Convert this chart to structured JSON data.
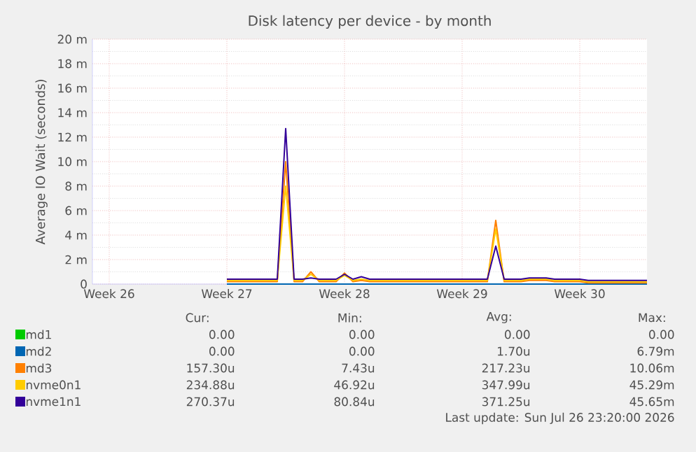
{
  "chart_data": {
    "type": "line",
    "title": "Disk latency per device - by month",
    "ylabel": "Average IO Wait (seconds)",
    "categories": [
      null,
      null,
      "Week 26",
      null,
      null,
      null,
      null,
      null,
      null,
      null,
      null,
      null,
      null,
      null,
      null,
      null,
      "Week 27",
      null,
      null,
      null,
      null,
      null,
      null,
      null,
      null,
      null,
      null,
      null,
      null,
      null,
      "Week 28",
      null,
      null,
      null,
      null,
      null,
      null,
      null,
      null,
      null,
      null,
      null,
      null,
      null,
      "Week 29",
      null,
      null,
      null,
      null,
      null,
      null,
      null,
      null,
      null,
      null,
      null,
      null,
      null,
      "Week 30",
      null,
      null,
      null,
      null,
      null,
      null,
      null,
      null
    ],
    "series": [
      {
        "name": "md1",
        "color": "#00cc00",
        "values": [
          null,
          null,
          null,
          null,
          null,
          null,
          null,
          null,
          null,
          null,
          null,
          null,
          null,
          null,
          null,
          null,
          null,
          null,
          null,
          null,
          null,
          null,
          null,
          null,
          null,
          null,
          null,
          null,
          null,
          null,
          null,
          null,
          null,
          null,
          null,
          null,
          null,
          null,
          null,
          null,
          null,
          null,
          null,
          null,
          null,
          null,
          null,
          null,
          null,
          null,
          null,
          null,
          null,
          null,
          null,
          null,
          null,
          null,
          null,
          null,
          null,
          null,
          null,
          null,
          null,
          null,
          null
        ]
      },
      {
        "name": "md2",
        "color": "#0066b3",
        "values": [
          null,
          null,
          null,
          null,
          null,
          null,
          null,
          null,
          null,
          null,
          null,
          null,
          null,
          null,
          null,
          null,
          0,
          0,
          0,
          0,
          0,
          0,
          0,
          0,
          0,
          0,
          0,
          0,
          0,
          0,
          0,
          0,
          0,
          0,
          0,
          0,
          0,
          0,
          0,
          0,
          0,
          0,
          0,
          0,
          0,
          0,
          0,
          0,
          0,
          0,
          0,
          0,
          0,
          0,
          0,
          0,
          0,
          0,
          0,
          0,
          0,
          0,
          0,
          0,
          0,
          0,
          0
        ]
      },
      {
        "name": "md3",
        "color": "#ff8000",
        "values": [
          null,
          null,
          null,
          null,
          null,
          null,
          null,
          null,
          null,
          null,
          null,
          null,
          null,
          null,
          null,
          null,
          0.2,
          0.2,
          0.2,
          0.2,
          0.2,
          0.2,
          0.2,
          10.0,
          0.2,
          0.2,
          1.0,
          0.2,
          0.2,
          0.2,
          0.9,
          0.2,
          0.3,
          0.2,
          0.2,
          0.2,
          0.2,
          0.2,
          0.2,
          0.2,
          0.2,
          0.2,
          0.2,
          0.2,
          0.2,
          0.2,
          0.2,
          0.2,
          5.2,
          0.2,
          0.2,
          0.2,
          0.3,
          0.3,
          0.3,
          0.2,
          0.2,
          0.2,
          0.2,
          0.1,
          0.1,
          0.1,
          0.1,
          0.1,
          0.1,
          0.1,
          0.1
        ]
      },
      {
        "name": "nvme0n1",
        "color": "#ffcc00",
        "values": [
          null,
          null,
          null,
          null,
          null,
          null,
          null,
          null,
          null,
          null,
          null,
          null,
          null,
          null,
          null,
          null,
          0.3,
          0.3,
          0.3,
          0.3,
          0.3,
          0.3,
          0.3,
          8.0,
          0.3,
          0.3,
          0.8,
          0.3,
          0.3,
          0.3,
          0.7,
          0.3,
          0.4,
          0.3,
          0.3,
          0.3,
          0.3,
          0.3,
          0.3,
          0.3,
          0.3,
          0.3,
          0.3,
          0.3,
          0.3,
          0.3,
          0.3,
          0.3,
          4.5,
          0.3,
          0.3,
          0.3,
          0.4,
          0.4,
          0.4,
          0.3,
          0.3,
          0.3,
          0.3,
          0.2,
          0.2,
          0.2,
          0.2,
          0.2,
          0.2,
          0.2,
          0.2
        ]
      },
      {
        "name": "nvme1n1",
        "color": "#330099",
        "values": [
          null,
          null,
          null,
          null,
          null,
          null,
          null,
          null,
          null,
          null,
          null,
          null,
          null,
          null,
          null,
          null,
          0.4,
          0.4,
          0.4,
          0.4,
          0.4,
          0.4,
          0.4,
          12.7,
          0.4,
          0.4,
          0.5,
          0.4,
          0.4,
          0.4,
          0.8,
          0.4,
          0.6,
          0.4,
          0.4,
          0.4,
          0.4,
          0.4,
          0.4,
          0.4,
          0.4,
          0.4,
          0.4,
          0.4,
          0.4,
          0.4,
          0.4,
          0.4,
          3.1,
          0.4,
          0.4,
          0.4,
          0.5,
          0.5,
          0.5,
          0.4,
          0.4,
          0.4,
          0.4,
          0.3,
          0.3,
          0.3,
          0.3,
          0.3,
          0.3,
          0.3,
          0.3
        ]
      }
    ],
    "ylim": [
      0,
      20
    ],
    "yticks": [
      {
        "value": 0,
        "label": "0"
      },
      {
        "value": 2,
        "label": "2 m"
      },
      {
        "value": 4,
        "label": "4 m"
      },
      {
        "value": 6,
        "label": "6 m"
      },
      {
        "value": 8,
        "label": "8 m"
      },
      {
        "value": 10,
        "label": "10 m"
      },
      {
        "value": 12,
        "label": "12 m"
      },
      {
        "value": 14,
        "label": "14 m"
      },
      {
        "value": 16,
        "label": "16 m"
      },
      {
        "value": 18,
        "label": "18 m"
      },
      {
        "value": 20,
        "label": "20 m"
      }
    ],
    "grid": true,
    "legend": "bottom",
    "marker": "none",
    "line_style": "solid",
    "annotations": [
      "Cur:",
      "Min:",
      "Avg:",
      "Max:",
      "0.00",
      "0.00",
      "0.00",
      "0.00",
      "0.00",
      "0.00",
      "1.70u",
      "6.79m",
      "157.30u",
      "7.43u",
      "217.23u",
      "10.06m",
      "234.88u",
      "46.92u",
      "347.99u",
      "45.29m",
      "270.37u",
      "80.84u",
      "371.25u",
      "45.65m",
      "Last update: Sun Jul 26 23:20:00 2026"
    ]
  }
}
